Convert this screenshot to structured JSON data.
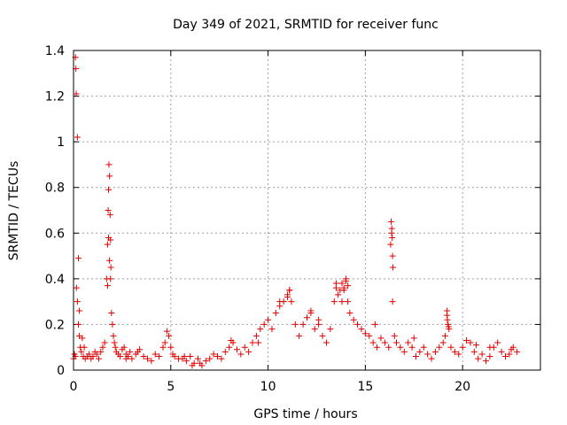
{
  "chart_data": {
    "type": "scatter",
    "title": "Day 349 of 2021, SRMTID for receiver func",
    "xlabel": "GPS time / hours",
    "ylabel": "SRMTID / TECUs",
    "xlim": [
      0,
      24
    ],
    "ylim": [
      0,
      1.4
    ],
    "x_ticks": [
      0,
      5,
      10,
      15,
      20
    ],
    "y_ticks": [
      0,
      0.2,
      0.4,
      0.6,
      0.8,
      1,
      1.2,
      1.4
    ],
    "x_tick_labels": [
      "0",
      "5",
      "10",
      "15",
      "20"
    ],
    "y_tick_labels": [
      "0",
      "0.2",
      "0.4",
      "0.6",
      "0.8",
      "1",
      "1.2",
      "1.4"
    ],
    "grid": true,
    "marker": "+",
    "color": "#e00000",
    "series": [
      {
        "name": "SRMTID",
        "x": [
          0.0,
          0.05,
          0.1,
          0.15,
          0.2,
          0.25,
          0.3,
          0.35,
          0.4,
          0.45,
          0.5,
          0.55,
          0.6,
          0.7,
          0.8,
          0.9,
          1.0,
          1.1,
          1.2,
          1.3,
          1.4,
          1.5,
          1.6,
          1.7,
          1.75,
          1.8,
          1.85,
          1.9,
          1.95,
          2.0,
          2.05,
          2.1,
          2.15,
          2.2,
          2.3,
          2.4,
          2.5,
          2.6,
          2.7,
          2.8,
          2.9,
          3.0,
          3.2,
          3.4,
          3.6,
          3.8,
          4.0,
          4.2,
          4.4,
          4.6,
          4.7,
          4.8,
          4.9,
          5.0,
          5.1,
          5.2,
          5.4,
          5.6,
          5.8,
          6.0,
          6.2,
          6.4,
          6.6,
          6.8,
          7.0,
          7.2,
          7.4,
          7.6,
          7.8,
          8.0,
          8.2,
          8.4,
          8.6,
          8.8,
          9.0,
          9.2,
          9.4,
          9.6,
          9.8,
          10.0,
          10.2,
          10.4,
          10.6,
          10.8,
          11.0,
          11.1,
          11.2,
          11.4,
          11.6,
          11.8,
          12.0,
          12.2,
          12.4,
          12.6,
          12.8,
          13.0,
          13.2,
          13.4,
          13.5,
          13.6,
          13.7,
          13.8,
          13.9,
          14.0,
          14.1,
          14.2,
          14.4,
          14.6,
          14.8,
          15.0,
          15.2,
          15.4,
          15.6,
          15.8,
          16.0,
          16.2,
          16.3,
          16.35,
          16.4,
          16.5,
          16.6,
          16.8,
          17.0,
          17.2,
          17.4,
          17.6,
          17.8,
          18.0,
          18.2,
          18.4,
          18.6,
          18.8,
          19.0,
          19.1,
          19.2,
          19.25,
          19.3,
          19.4,
          19.6,
          19.8,
          20.0,
          20.2,
          20.4,
          20.6,
          20.8,
          21.0,
          21.2,
          21.4,
          21.6,
          21.8,
          22.0,
          22.2,
          22.4,
          22.6,
          22.8,
          0.1,
          0.12,
          0.14,
          0.2,
          0.25,
          0.3,
          1.75,
          1.78,
          1.8,
          1.82,
          1.85,
          1.88,
          1.9,
          1.92,
          16.33,
          16.36,
          16.38,
          16.4,
          16.42,
          19.2,
          19.22,
          19.28,
          13.5,
          13.8,
          14.0,
          11.1,
          11.0,
          10.6,
          12.2,
          13.9,
          14.1,
          6.1,
          6.5,
          5.7,
          3.3,
          2.7,
          8.1,
          9.5,
          12.6,
          15.5,
          17.5,
          20.7,
          21.4,
          22.5
        ],
        "y": [
          0.05,
          0.07,
          0.06,
          0.36,
          0.3,
          0.2,
          0.15,
          0.1,
          0.08,
          0.14,
          0.06,
          0.1,
          0.05,
          0.06,
          0.07,
          0.05,
          0.06,
          0.08,
          0.07,
          0.05,
          0.08,
          0.1,
          0.12,
          0.4,
          0.55,
          0.58,
          0.48,
          0.4,
          0.25,
          0.2,
          0.15,
          0.12,
          0.1,
          0.08,
          0.07,
          0.06,
          0.09,
          0.1,
          0.05,
          0.06,
          0.08,
          0.05,
          0.07,
          0.09,
          0.06,
          0.05,
          0.04,
          0.07,
          0.06,
          0.1,
          0.12,
          0.17,
          0.15,
          0.1,
          0.07,
          0.06,
          0.05,
          0.05,
          0.04,
          0.06,
          0.03,
          0.05,
          0.02,
          0.04,
          0.05,
          0.07,
          0.06,
          0.05,
          0.08,
          0.1,
          0.12,
          0.09,
          0.07,
          0.1,
          0.08,
          0.12,
          0.15,
          0.18,
          0.2,
          0.22,
          0.18,
          0.25,
          0.28,
          0.3,
          0.33,
          0.35,
          0.3,
          0.2,
          0.15,
          0.2,
          0.23,
          0.25,
          0.18,
          0.2,
          0.15,
          0.12,
          0.18,
          0.3,
          0.38,
          0.33,
          0.35,
          0.3,
          0.36,
          0.4,
          0.3,
          0.25,
          0.22,
          0.2,
          0.18,
          0.16,
          0.15,
          0.12,
          0.1,
          0.14,
          0.12,
          0.1,
          0.55,
          0.6,
          0.3,
          0.15,
          0.12,
          0.1,
          0.08,
          0.12,
          0.1,
          0.06,
          0.08,
          0.1,
          0.07,
          0.05,
          0.08,
          0.1,
          0.12,
          0.15,
          0.24,
          0.2,
          0.18,
          0.1,
          0.08,
          0.07,
          0.1,
          0.13,
          0.12,
          0.08,
          0.05,
          0.07,
          0.04,
          0.06,
          0.1,
          0.12,
          0.08,
          0.06,
          0.07,
          0.1,
          0.08,
          1.37,
          1.32,
          1.21,
          1.02,
          0.49,
          0.26,
          0.37,
          0.7,
          0.79,
          0.9,
          0.85,
          0.68,
          0.57,
          0.45,
          0.65,
          0.62,
          0.58,
          0.5,
          0.45,
          0.26,
          0.22,
          0.19,
          0.36,
          0.38,
          0.39,
          0.35,
          0.32,
          0.3,
          0.26,
          0.35,
          0.37,
          0.02,
          0.03,
          0.06,
          0.08,
          0.07,
          0.13,
          0.12,
          0.22,
          0.2,
          0.14,
          0.11,
          0.1,
          0.09
        ]
      }
    ]
  }
}
